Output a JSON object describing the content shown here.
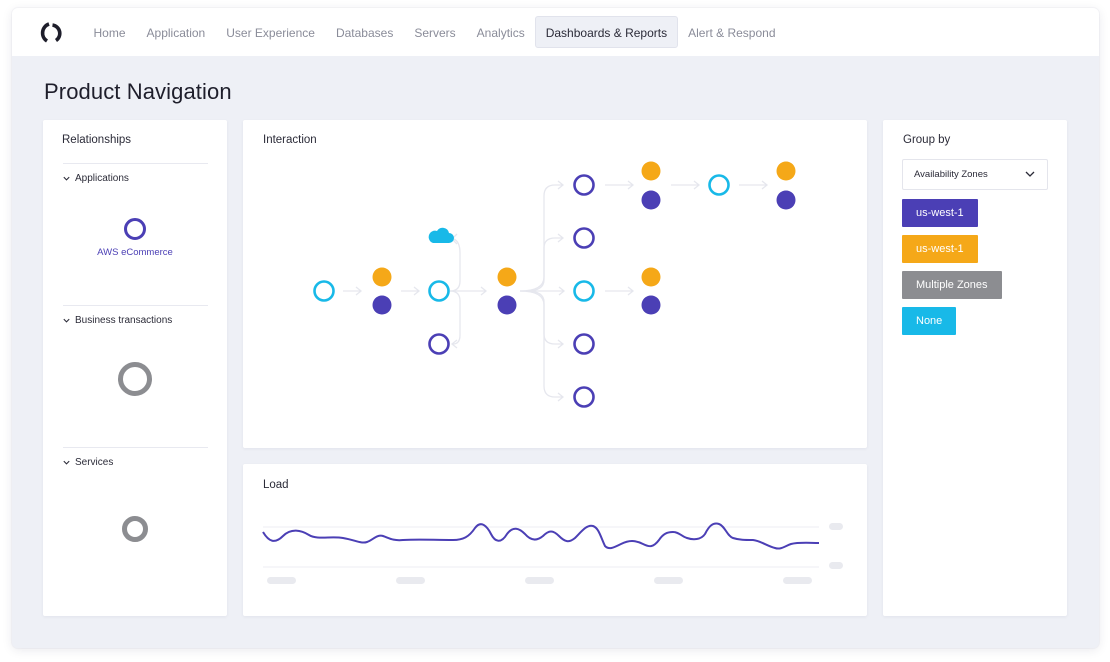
{
  "nav": {
    "logo": "logo-icon",
    "items": [
      {
        "label": "Home",
        "active": false
      },
      {
        "label": "Application",
        "active": false
      },
      {
        "label": "User Experience",
        "active": false
      },
      {
        "label": "Databases",
        "active": false
      },
      {
        "label": "Servers",
        "active": false
      },
      {
        "label": "Analytics",
        "active": false
      },
      {
        "label": "Dashboards & Reports",
        "active": true
      },
      {
        "label": "Alert & Respond",
        "active": false
      }
    ]
  },
  "page": {
    "title": "Product Navigation"
  },
  "relationships": {
    "title": "Relationships",
    "sections": [
      {
        "label": "Applications",
        "icon": "chevron-down-icon",
        "item": "AWS eCommerce"
      },
      {
        "label": "Business transactions",
        "icon": "chevron-down-icon"
      },
      {
        "label": "Services",
        "icon": "chevron-down-icon"
      }
    ]
  },
  "interaction": {
    "title": "Interaction",
    "icon": "cloud-icon"
  },
  "load": {
    "title": "Load"
  },
  "group_by": {
    "title": "Group by",
    "select_value": "Availability Zones",
    "select_icon": "chevron-down-icon",
    "zones": [
      {
        "label": "us-west-1",
        "color": "#4b3fb5"
      },
      {
        "label": "us-west-1",
        "color": "#f5a818"
      },
      {
        "label": "Multiple Zones",
        "color": "#8c8d91"
      },
      {
        "label": "None",
        "color": "#18b9e8"
      }
    ]
  },
  "colors": {
    "purple": "#4b3fb5",
    "orange": "#f5a818",
    "cyan": "#18b9e8",
    "gray": "#8c8d91",
    "background": "#eef0f6"
  }
}
